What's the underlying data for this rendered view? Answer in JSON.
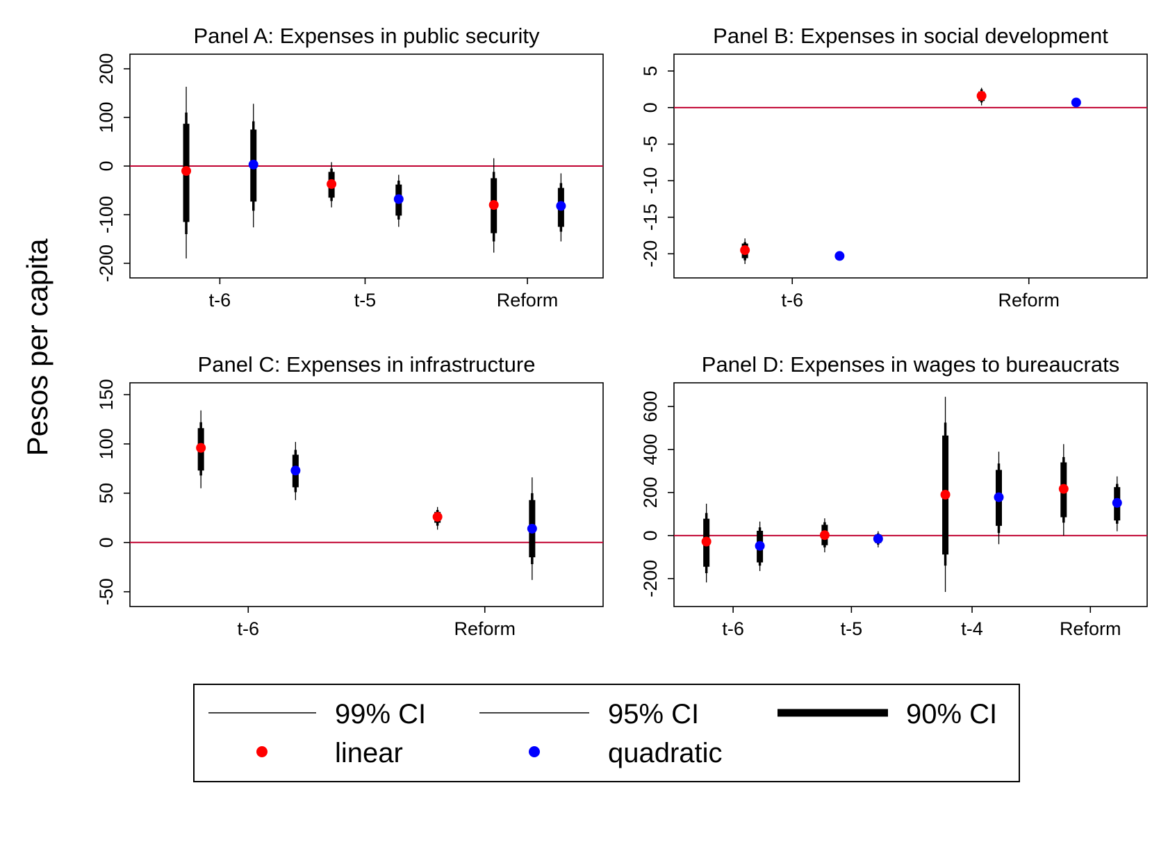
{
  "figure": {
    "ylabel": "Pesos per capita"
  },
  "chart_data": [
    {
      "type": "scatter",
      "title": "Panel A: Expenses in public security",
      "xlabel": "",
      "ylabel": "Pesos per capita",
      "ylim": [
        -230,
        230
      ],
      "yticks": [
        -200,
        -100,
        0,
        100,
        200
      ],
      "ytick_labels": [
        "-200",
        "-100",
        "0",
        "100",
        "200"
      ],
      "categories": [
        "t-6",
        "t-5",
        "Reform"
      ],
      "zero_line": 0,
      "series": [
        {
          "name": "linear",
          "values": [
            -10,
            -37,
            -80
          ],
          "ci90": [
            [
              -115,
              87
            ],
            [
              -65,
              -12
            ],
            [
              -138,
              -25
            ]
          ],
          "ci95": [
            [
              -140,
              110
            ],
            [
              -72,
              -5
            ],
            [
              -155,
              -12
            ]
          ],
          "ci99": [
            [
              -190,
              163
            ],
            [
              -85,
              8
            ],
            [
              -178,
              16
            ]
          ]
        },
        {
          "name": "quadratic",
          "values": [
            3,
            -68,
            -82
          ],
          "ci90": [
            [
              -73,
              75
            ],
            [
              -102,
              -38
            ],
            [
              -125,
              -45
            ]
          ],
          "ci95": [
            [
              -92,
              92
            ],
            [
              -110,
              -30
            ],
            [
              -135,
              -35
            ]
          ],
          "ci99": [
            [
              -126,
              128
            ],
            [
              -125,
              -18
            ],
            [
              -155,
              -15
            ]
          ]
        }
      ]
    },
    {
      "type": "scatter",
      "title": "Panel B: Expenses in social development",
      "xlabel": "",
      "ylabel": "Pesos per capita",
      "ylim": [
        -23.3,
        7.3
      ],
      "yticks": [
        -20,
        -15,
        -10,
        -5,
        0,
        5
      ],
      "ytick_labels": [
        "-20",
        "-15",
        "-10",
        "-5",
        "0",
        "5"
      ],
      "categories": [
        "t-6",
        "Reform"
      ],
      "zero_line": 0,
      "series": [
        {
          "name": "linear",
          "values": [
            -19.5,
            1.6
          ],
          "ci90": [
            [
              -20.6,
              -18.6
            ],
            [
              0.9,
              2.2
            ]
          ],
          "ci95": [
            [
              -20.9,
              -18.4
            ],
            [
              0.7,
              2.5
            ]
          ],
          "ci99": [
            [
              -21.4,
              -17.9
            ],
            [
              0.3,
              2.7
            ]
          ]
        },
        {
          "name": "quadratic",
          "values": [
            -20.3,
            0.7
          ],
          "ci90": [
            [
              -20.5,
              -20.1
            ],
            [
              0.6,
              0.8
            ]
          ],
          "ci95": [
            [
              -20.5,
              -20.1
            ],
            [
              0.6,
              0.8
            ]
          ],
          "ci99": [
            [
              -20.6,
              -20.0
            ],
            [
              0.5,
              0.9
            ]
          ]
        }
      ]
    },
    {
      "type": "scatter",
      "title": "Panel C: Expenses in infrastructure",
      "xlabel": "",
      "ylabel": "Pesos per capita",
      "ylim": [
        -65,
        162
      ],
      "yticks": [
        -50,
        0,
        50,
        100,
        150
      ],
      "ytick_labels": [
        "-50",
        "0",
        "50",
        "100",
        "150"
      ],
      "categories": [
        "t-6",
        "Reform"
      ],
      "zero_line": 0,
      "series": [
        {
          "name": "linear",
          "values": [
            96,
            26
          ],
          "ci90": [
            [
              73,
              116
            ],
            [
              20,
              31
            ]
          ],
          "ci95": [
            [
              68,
              122
            ],
            [
              17,
              33
            ]
          ],
          "ci99": [
            [
              55,
              134
            ],
            [
              13,
              36
            ]
          ]
        },
        {
          "name": "quadratic",
          "values": [
            73,
            14
          ],
          "ci90": [
            [
              56,
              89
            ],
            [
              -15,
              43
            ]
          ],
          "ci95": [
            [
              51,
              94
            ],
            [
              -22,
              50
            ]
          ],
          "ci99": [
            [
              43,
              102
            ],
            [
              -38,
              66
            ]
          ]
        }
      ]
    },
    {
      "type": "scatter",
      "title": "Panel D: Expenses in wages to bureaucrats",
      "xlabel": "",
      "ylabel": "Pesos per capita",
      "ylim": [
        -330,
        710
      ],
      "yticks": [
        -200,
        0,
        200,
        400,
        600
      ],
      "ytick_labels": [
        "-200",
        "0",
        "200",
        "400",
        "600"
      ],
      "categories": [
        "t-6",
        "t-5",
        "t-4",
        "Reform"
      ],
      "zero_line": 0,
      "series": [
        {
          "name": "linear",
          "values": [
            -28,
            2,
            190,
            217
          ],
          "ci90": [
            [
              -145,
              78
            ],
            [
              -45,
              50
            ],
            [
              -88,
              465
            ],
            [
              85,
              340
            ]
          ],
          "ci95": [
            [
              -175,
              105
            ],
            [
              -55,
              62
            ],
            [
              -140,
              525
            ],
            [
              60,
              365
            ]
          ],
          "ci99": [
            [
              -218,
              148
            ],
            [
              -78,
              80
            ],
            [
              -262,
              645
            ],
            [
              0,
              425
            ]
          ]
        },
        {
          "name": "quadratic",
          "values": [
            -48,
            -15,
            178,
            152
          ],
          "ci90": [
            [
              -125,
              22
            ],
            [
              -35,
              5
            ],
            [
              45,
              305
            ],
            [
              70,
              225
            ]
          ],
          "ci95": [
            [
              -140,
              38
            ],
            [
              -42,
              10
            ],
            [
              12,
              335
            ],
            [
              55,
              240
            ]
          ],
          "ci99": [
            [
              -165,
              65
            ],
            [
              -55,
              20
            ],
            [
              -40,
              390
            ],
            [
              20,
              275
            ]
          ]
        }
      ]
    }
  ],
  "legend": {
    "items": [
      {
        "label": "99% CI"
      },
      {
        "label": "95% CI"
      },
      {
        "label": "90% CI"
      },
      {
        "label": "linear"
      },
      {
        "label": "quadratic"
      }
    ]
  },
  "colors": {
    "linear": "#ff0000",
    "quadratic": "#0000ff",
    "ci": "#000000",
    "zero_line": "#c0002f",
    "frame": "#000000"
  }
}
